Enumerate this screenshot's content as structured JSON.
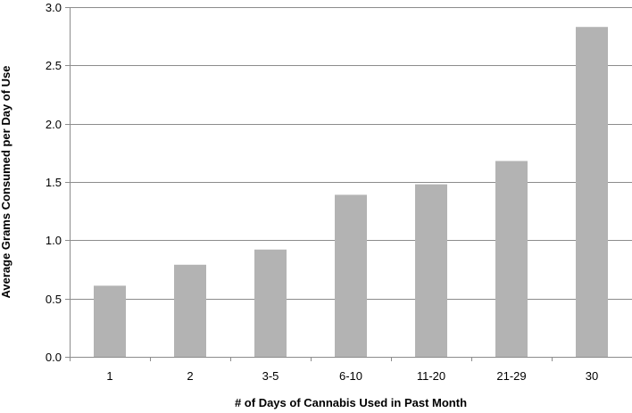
{
  "chart_data": {
    "type": "bar",
    "categories": [
      "1",
      "2",
      "3-5",
      "6-10",
      "11-20",
      "21-29",
      "30"
    ],
    "values": [
      0.61,
      0.79,
      0.92,
      1.39,
      1.48,
      1.68,
      2.83
    ],
    "xlabel": "# of Days of Cannabis Used in Past Month",
    "ylabel": "Average Grams Consumed per Day of Use",
    "ylim": [
      0,
      3.0
    ],
    "yticks": [
      "0.0",
      "0.5",
      "1.0",
      "1.5",
      "2.0",
      "2.5",
      "3.0"
    ],
    "grid": true,
    "legend": "none",
    "colors": {
      "bar": "#b3b3b3",
      "grid": "#8c8c8c",
      "axis": "#8c8c8c"
    }
  }
}
